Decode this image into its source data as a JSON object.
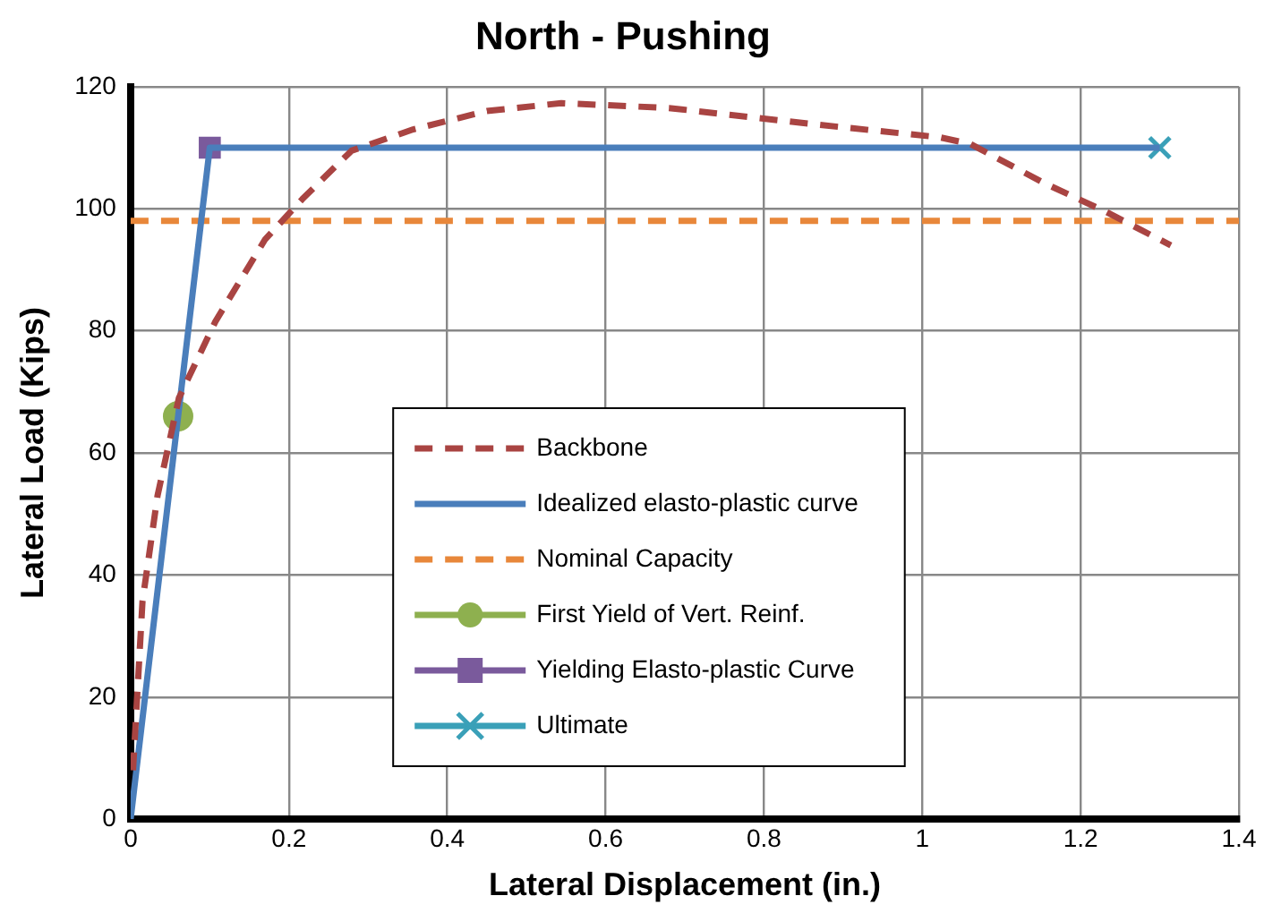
{
  "chart_data": {
    "type": "line",
    "title": "North - Pushing",
    "xlabel": "Lateral Displacement (in.)",
    "ylabel": "Lateral Load (Kips)",
    "xlim": [
      0,
      1.4
    ],
    "xticks": [
      0,
      0.2,
      0.4,
      0.6,
      0.8,
      1,
      1.2,
      1.4
    ],
    "ylim": [
      0,
      120
    ],
    "yticks": [
      0,
      20,
      40,
      60,
      80,
      100,
      120
    ],
    "grid": true,
    "legend": "center",
    "series": [
      {
        "name": "Backbone",
        "color": "#a94442",
        "line_style": "dashed",
        "marker": "none",
        "x": [
          0.003,
          0.015,
          0.034,
          0.061,
          0.107,
          0.17,
          0.217,
          0.279,
          0.357,
          0.45,
          0.544,
          0.68,
          0.866,
          1.022,
          1.061,
          1.154,
          1.232,
          1.314
        ],
        "values": [
          8,
          35.7,
          53,
          69,
          81.5,
          95,
          101.6,
          109.5,
          113,
          116,
          117.3,
          116.5,
          113.8,
          111.7,
          110.6,
          104.2,
          99.5,
          94
        ]
      },
      {
        "name": "Idealized elasto-plastic curve",
        "color": "#4a7ebb",
        "line_style": "solid",
        "marker": "none",
        "x": [
          0,
          0.1,
          1.3
        ],
        "values": [
          0,
          110,
          110
        ]
      },
      {
        "name": "Nominal Capacity",
        "color": "#e8873a",
        "line_style": "dashed",
        "marker": "none",
        "x": [
          0,
          1.4
        ],
        "values": [
          98,
          98
        ]
      },
      {
        "name": "First Yield of Vert. Reinf.",
        "color": "#8eb04f",
        "marker": "circle",
        "x": [
          0.06
        ],
        "values": [
          66
        ]
      },
      {
        "name": "Yielding Elasto-plastic Curve",
        "color": "#7a5a9c",
        "marker": "square",
        "x": [
          0.1
        ],
        "values": [
          110
        ]
      },
      {
        "name": "Ultimate",
        "color": "#3aa0b8",
        "marker": "cross",
        "x": [
          1.3
        ],
        "values": [
          110
        ]
      }
    ]
  }
}
